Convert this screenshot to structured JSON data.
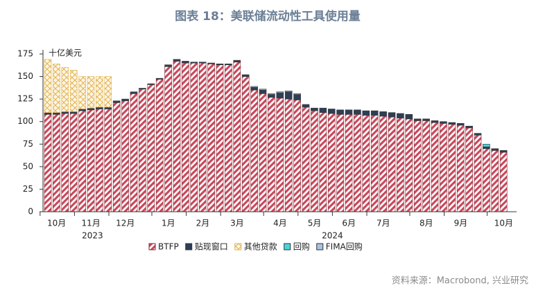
{
  "chart_data": {
    "type": "stacked_bar",
    "title": "图表 18：美联储流动性工具使用量",
    "unit_label": "十亿美元",
    "source": "资料来源：Macrobond, 兴业研究",
    "categories": [
      null,
      "10月",
      null,
      null,
      null,
      "11月",
      null,
      null,
      null,
      "12月",
      null,
      null,
      null,
      null,
      "1月",
      null,
      null,
      null,
      "2月",
      null,
      null,
      null,
      "3月",
      null,
      null,
      null,
      null,
      "4月",
      null,
      null,
      null,
      "5月",
      null,
      null,
      null,
      "6月",
      null,
      null,
      null,
      "7月",
      null,
      null,
      null,
      null,
      "8月",
      null,
      null,
      null,
      "9月",
      null,
      null,
      null,
      null,
      "10月"
    ],
    "year_labels": [
      "2023",
      "2024"
    ],
    "ylim": [
      0,
      175
    ],
    "yticks": [
      0,
      25,
      50,
      75,
      100,
      125,
      150,
      175
    ],
    "series": [
      {
        "name": "BTFP",
        "color": "#c9485b",
        "hatch": "diagonal",
        "values": [
          108,
          108,
          109,
          109,
          112,
          113,
          114,
          114,
          121,
          123,
          131,
          136,
          141,
          147,
          161,
          167,
          165,
          165,
          165,
          164,
          163,
          163,
          166,
          150,
          135,
          131,
          127,
          126,
          125,
          124,
          116,
          112,
          110,
          109,
          108,
          108,
          108,
          107,
          107,
          106,
          105,
          104,
          103,
          101,
          101,
          99,
          98,
          97,
          96,
          93,
          85,
          70,
          68,
          66
        ]
      },
      {
        "name": "贴现窗口",
        "color": "#2d3f57",
        "hatch": "solid",
        "values": [
          2,
          2,
          2,
          2,
          2,
          2,
          2,
          2,
          2,
          2,
          2,
          1,
          1,
          1,
          2,
          2,
          2,
          1,
          1,
          1,
          1,
          1,
          2,
          2,
          3,
          4,
          3,
          6,
          8,
          6,
          3,
          3,
          5,
          5,
          5,
          5,
          5,
          5,
          5,
          5,
          5,
          5,
          5,
          2,
          2,
          2,
          2,
          2,
          2,
          2,
          2,
          2,
          2,
          2
        ]
      },
      {
        "name": "其他贷款",
        "color": "#e2b24e",
        "hatch": "cross",
        "values": [
          59,
          54,
          49,
          46,
          36,
          35,
          34,
          34,
          0,
          0,
          0,
          0,
          0,
          0,
          0,
          0,
          0,
          0,
          0,
          0,
          0,
          0,
          0,
          0,
          0,
          0,
          0,
          0,
          0,
          0,
          0,
          0,
          0,
          0,
          0,
          0,
          0,
          0,
          0,
          0,
          0,
          0,
          0,
          0,
          0,
          0,
          0,
          0,
          0,
          0,
          0,
          0,
          0,
          0
        ]
      },
      {
        "name": "回购",
        "color": "#45d6df",
        "hatch": "solid",
        "values": [
          0,
          0,
          0,
          0,
          0,
          0,
          0,
          0,
          0,
          0,
          0,
          0,
          0,
          0,
          0,
          0,
          0,
          0,
          0,
          0,
          0,
          0,
          0,
          0,
          0,
          0,
          0,
          0,
          0,
          0,
          0,
          0,
          0,
          0,
          0,
          0,
          0,
          0,
          0,
          0,
          0,
          0,
          0,
          0,
          0,
          0,
          0,
          0,
          0,
          0,
          0,
          3,
          0,
          0
        ]
      },
      {
        "name": "FIMA回购",
        "color": "#a8c3e0",
        "hatch": "solid",
        "values": [
          0,
          0,
          0,
          0,
          0,
          0,
          0,
          0,
          0,
          0,
          0,
          0,
          0,
          0,
          0,
          0,
          0,
          0,
          0,
          0,
          0,
          0,
          0,
          0,
          1,
          1,
          1,
          1,
          1,
          1,
          0,
          0,
          0,
          0,
          0,
          0,
          0,
          0,
          0,
          0,
          0,
          0,
          0,
          0,
          0,
          0,
          0,
          0,
          0,
          0,
          0,
          0,
          0,
          0
        ]
      }
    ]
  }
}
